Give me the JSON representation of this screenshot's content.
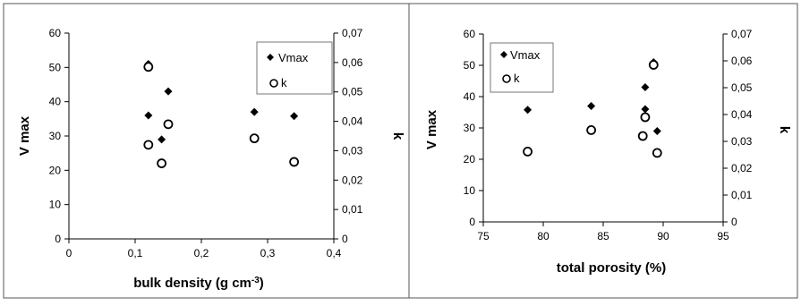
{
  "chart_data": [
    {
      "type": "scatter",
      "title": "",
      "xlabel": "bulk density (g cm-3)",
      "xlabel_main": "bulk density (g cm",
      "xlabel_sup": "-3",
      "xlabel_tail": ")",
      "ylabel": "V max",
      "y2label": "k",
      "xlim": [
        0,
        0.4
      ],
      "ylim": [
        0,
        60
      ],
      "y2lim": [
        0,
        0.07
      ],
      "xticks": [
        "0",
        "0,1",
        "0,2",
        "0,3",
        "0,4"
      ],
      "yticks": [
        "0",
        "10",
        "20",
        "30",
        "40",
        "50",
        "60"
      ],
      "y2ticks": [
        "0",
        "0,01",
        "0,02",
        "0,03",
        "0,04",
        "0,05",
        "0,06",
        "0,07"
      ],
      "legend_position": "top-right",
      "series": [
        {
          "name": "Vmax",
          "marker": "diamond",
          "axis": "left",
          "color": "#000000",
          "points": [
            [
              0.12,
              51
            ],
            [
              0.12,
              36
            ],
            [
              0.14,
              29
            ],
            [
              0.15,
              43
            ],
            [
              0.28,
              37
            ],
            [
              0.34,
              35.8
            ]
          ]
        },
        {
          "name": "k",
          "marker": "open-circle",
          "axis": "right",
          "color": "#000000",
          "points": [
            [
              0.12,
              0.0585
            ],
            [
              0.12,
              0.032
            ],
            [
              0.14,
              0.0257
            ],
            [
              0.15,
              0.039
            ],
            [
              0.28,
              0.0342
            ],
            [
              0.34,
              0.0262
            ]
          ]
        }
      ]
    },
    {
      "type": "scatter",
      "title": "",
      "xlabel": "total porosity (%)",
      "ylabel": "V max",
      "y2label": "k",
      "xlim": [
        75,
        95
      ],
      "ylim": [
        0,
        60
      ],
      "y2lim": [
        0,
        0.07
      ],
      "xticks": [
        "75",
        "80",
        "85",
        "90",
        "95"
      ],
      "yticks": [
        "0",
        "10",
        "20",
        "30",
        "40",
        "50",
        "60"
      ],
      "y2ticks": [
        "0",
        "0,01",
        "0,02",
        "0,03",
        "0,04",
        "0,05",
        "0,06",
        "0,07"
      ],
      "legend_position": "top-left",
      "series": [
        {
          "name": "Vmax",
          "marker": "diamond",
          "axis": "left",
          "color": "#000000",
          "points": [
            [
              78.7,
              35.8
            ],
            [
              84,
              37
            ],
            [
              88.5,
              43
            ],
            [
              88.5,
              36
            ],
            [
              89.2,
              51
            ],
            [
              89.5,
              29
            ]
          ]
        },
        {
          "name": "k",
          "marker": "open-circle",
          "axis": "right",
          "color": "#000000",
          "points": [
            [
              78.7,
              0.0262
            ],
            [
              84,
              0.0342
            ],
            [
              88.5,
              0.039
            ],
            [
              88.3,
              0.032
            ],
            [
              89.2,
              0.0585
            ],
            [
              89.5,
              0.0257
            ]
          ]
        }
      ]
    }
  ]
}
